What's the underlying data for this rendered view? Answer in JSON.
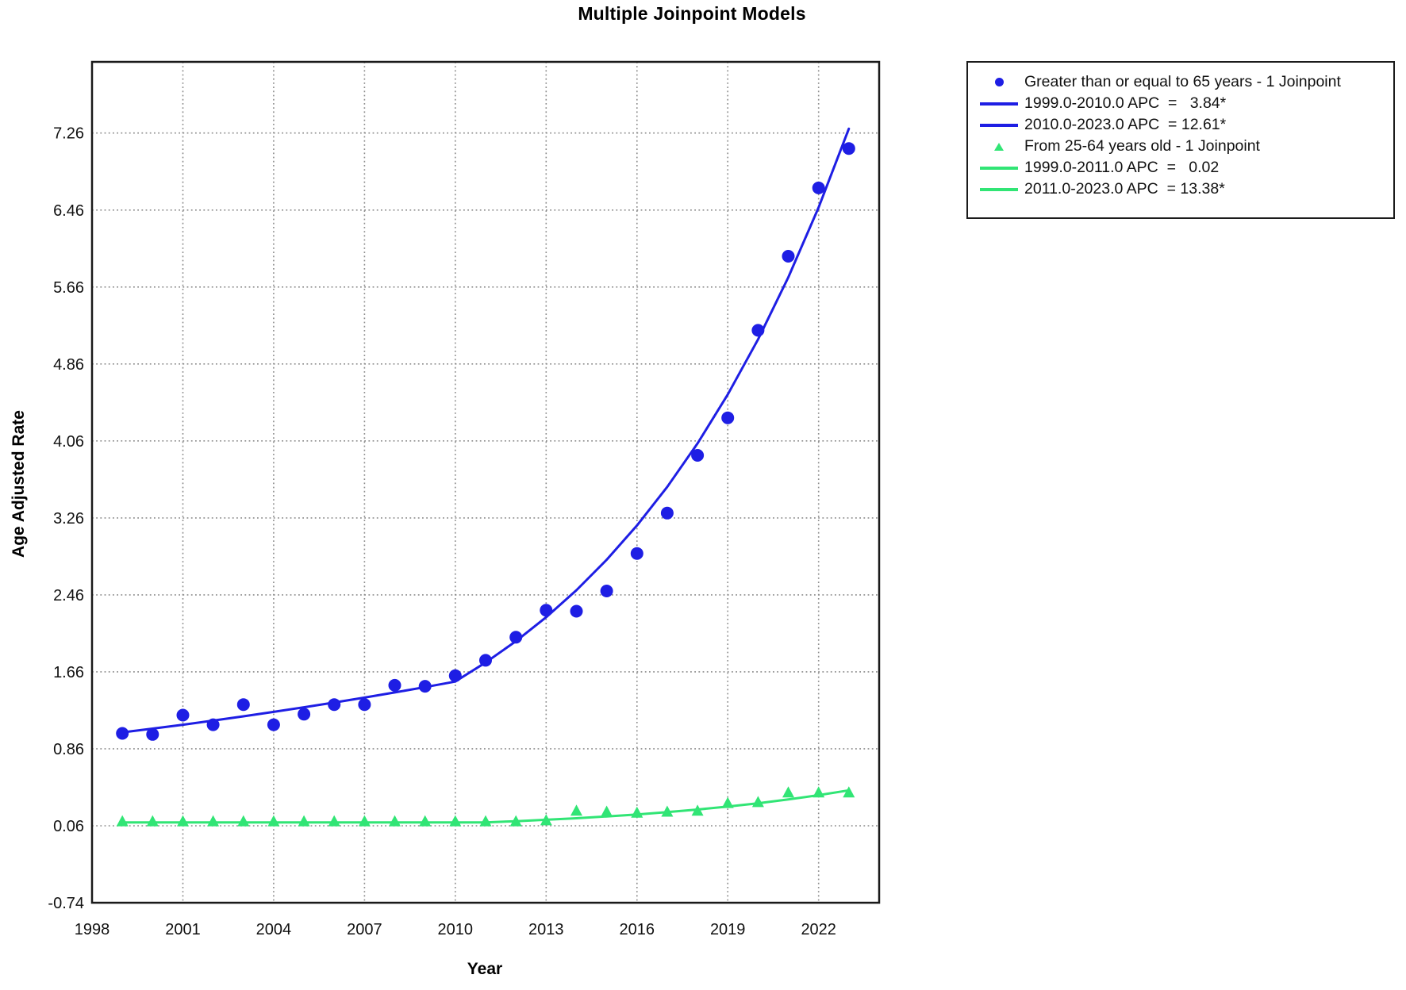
{
  "title": "Multiple Joinpoint Models",
  "axes": {
    "x_label": "Year",
    "y_label": "Age Adjusted Rate"
  },
  "colors": {
    "grid": "#8C8C8C",
    "axis": "#1A1A1A",
    "text": "#111111"
  },
  "chart_data": {
    "type": "scatter",
    "title": "Multiple Joinpoint Models",
    "xlabel": "Year",
    "ylabel": "Age Adjusted Rate",
    "x_range": [
      1998,
      2024
    ],
    "y_range": [
      -0.74,
      8.0
    ],
    "x_ticks": [
      1998,
      2001,
      2004,
      2007,
      2010,
      2013,
      2016,
      2019,
      2022
    ],
    "y_ticks": [
      7.26,
      6.46,
      5.66,
      4.86,
      4.06,
      3.26,
      2.46,
      1.66,
      0.86,
      0.06,
      -0.74
    ],
    "grid": true,
    "legend_position": "outside-top-right",
    "x": [
      1999,
      2000,
      2001,
      2002,
      2003,
      2004,
      2005,
      2006,
      2007,
      2008,
      2009,
      2010,
      2011,
      2012,
      2013,
      2014,
      2015,
      2016,
      2017,
      2018,
      2019,
      2020,
      2021,
      2022,
      2023
    ],
    "series": [
      {
        "name": "Greater than or equal to 65 years - 1 Joinpoint",
        "marker": "circle",
        "color": "#1E1EE4",
        "values": [
          1.02,
          1.01,
          1.21,
          1.11,
          1.32,
          1.11,
          1.22,
          1.32,
          1.32,
          1.52,
          1.51,
          1.62,
          1.78,
          2.02,
          2.3,
          2.29,
          2.5,
          2.89,
          3.31,
          3.91,
          4.3,
          5.21,
          5.98,
          6.69,
          7.1
        ],
        "joinpoint_segments": [
          {
            "start_year": 1999,
            "end_year": 2010,
            "start_value": 1.03,
            "apc": 3.84
          },
          {
            "start_year": 2010,
            "end_year": 2023,
            "start_value": 1.56,
            "apc": 12.61
          }
        ]
      },
      {
        "name": "From 25-64 years old - 1 Joinpoint",
        "marker": "triangle",
        "color": "#31E575",
        "values": [
          0.1,
          0.1,
          0.1,
          0.1,
          0.1,
          0.1,
          0.1,
          0.1,
          0.1,
          0.1,
          0.1,
          0.1,
          0.1,
          0.1,
          0.11,
          0.21,
          0.2,
          0.19,
          0.2,
          0.21,
          0.29,
          0.3,
          0.4,
          0.4,
          0.4
        ],
        "joinpoint_segments": [
          {
            "start_year": 1999,
            "end_year": 2011,
            "start_value": 0.095,
            "apc": 0.02
          },
          {
            "start_year": 2011,
            "end_year": 2023,
            "start_value": 0.095,
            "apc": 13.38
          }
        ]
      }
    ]
  },
  "legend": {
    "rows": [
      {
        "symbol": "circle-blue",
        "label": "Greater than or equal to 65 years - 1 Joinpoint"
      },
      {
        "symbol": "line-blue",
        "label": "1999.0-2010.0 APC  =   3.84*"
      },
      {
        "symbol": "line-blue",
        "label": "2010.0-2023.0 APC  = 12.61*"
      },
      {
        "symbol": "triangle-green",
        "label": "From 25-64 years old - 1 Joinpoint"
      },
      {
        "symbol": "line-green",
        "label": "1999.0-2011.0 APC  =   0.02"
      },
      {
        "symbol": "line-green",
        "label": "2011.0-2023.0 APC  = 13.38*"
      }
    ]
  }
}
